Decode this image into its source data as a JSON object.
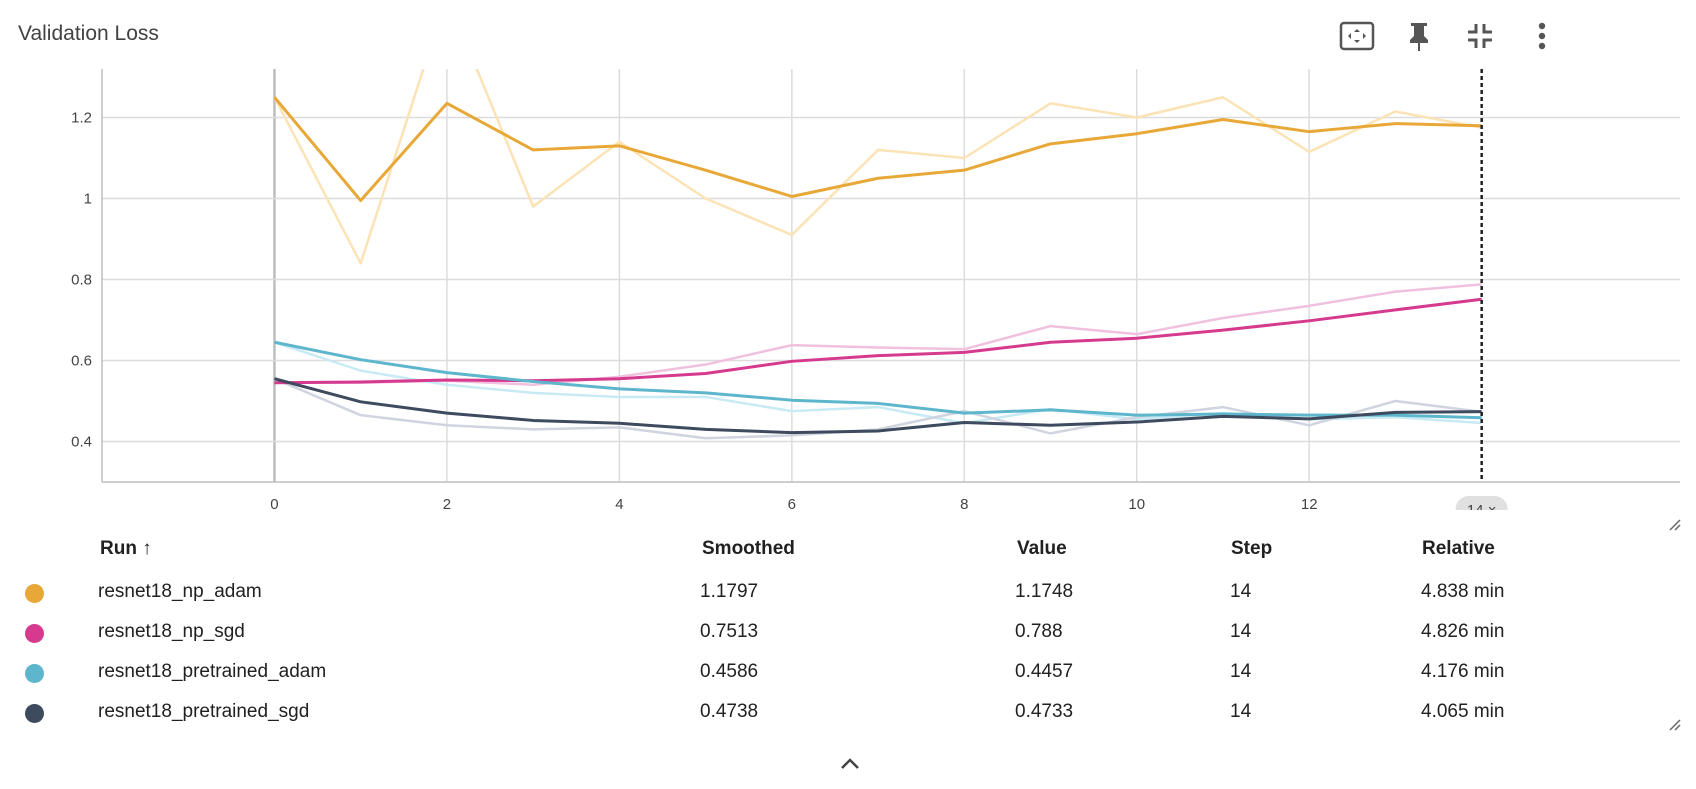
{
  "card": {
    "title": "Validation Loss"
  },
  "toolbar": {
    "icons": [
      "fit-to-data-icon",
      "pin-icon",
      "collapse-icon",
      "more-vert-icon"
    ]
  },
  "chart_data": {
    "type": "line",
    "xlim": [
      -2,
      16.3
    ],
    "ylim": [
      0.3,
      1.3
    ],
    "x_ticks": [
      0,
      2,
      4,
      6,
      8,
      10,
      12
    ],
    "x_tick_labels": [
      "0",
      "2",
      "4",
      "6",
      "8",
      "10",
      "12"
    ],
    "y_ticks": [
      0.4,
      0.6,
      0.8,
      1.0,
      1.2
    ],
    "y_tick_labels": [
      "0.4",
      "0.6",
      "0.8",
      "1",
      "1.2"
    ],
    "grid": true,
    "cursor_step": 14,
    "cursor_label": "14 ×",
    "series": [
      {
        "name": "resnet18_np_adam",
        "color": "#e8a838",
        "light": "#fbe3b5",
        "x": [
          0,
          1,
          2,
          3,
          4,
          5,
          6,
          7,
          8,
          9,
          10,
          11,
          12,
          13,
          14
        ],
        "raw": [
          1.25,
          0.84,
          1.5,
          0.98,
          1.14,
          1.0,
          0.91,
          1.12,
          1.1,
          1.235,
          1.2,
          1.25,
          1.115,
          1.215,
          1.1748
        ],
        "smoothed": [
          1.25,
          0.995,
          1.235,
          1.12,
          1.13,
          1.07,
          1.005,
          1.05,
          1.07,
          1.135,
          1.16,
          1.195,
          1.165,
          1.185,
          1.1797
        ]
      },
      {
        "name": "resnet18_np_sgd",
        "color": "#d63a8f",
        "light": "#efc1de",
        "x": [
          0,
          1,
          2,
          3,
          4,
          5,
          6,
          7,
          8,
          9,
          10,
          11,
          12,
          13,
          14
        ],
        "raw": [
          0.545,
          0.545,
          0.55,
          0.54,
          0.56,
          0.59,
          0.638,
          0.632,
          0.628,
          0.685,
          0.665,
          0.705,
          0.735,
          0.77,
          0.788
        ],
        "smoothed": [
          0.545,
          0.547,
          0.552,
          0.55,
          0.555,
          0.568,
          0.598,
          0.612,
          0.62,
          0.645,
          0.655,
          0.675,
          0.698,
          0.725,
          0.7513
        ]
      },
      {
        "name": "resnet18_pretrained_adam",
        "color": "#5db6cc",
        "light": "#c7eaf4",
        "x": [
          0,
          1,
          2,
          3,
          4,
          5,
          6,
          7,
          8,
          9,
          10,
          11,
          12,
          13,
          14
        ],
        "raw": [
          0.645,
          0.575,
          0.54,
          0.52,
          0.51,
          0.51,
          0.475,
          0.485,
          0.445,
          0.48,
          0.455,
          0.47,
          0.455,
          0.46,
          0.4457
        ],
        "smoothed": [
          0.645,
          0.602,
          0.57,
          0.548,
          0.53,
          0.52,
          0.502,
          0.494,
          0.47,
          0.478,
          0.465,
          0.468,
          0.465,
          0.465,
          0.4586
        ]
      },
      {
        "name": "resnet18_pretrained_sgd",
        "color": "#3e4a5e",
        "light": "#d0d4df",
        "x": [
          0,
          1,
          2,
          3,
          4,
          5,
          6,
          7,
          8,
          9,
          10,
          11,
          12,
          13,
          14
        ],
        "raw": [
          0.555,
          0.465,
          0.44,
          0.43,
          0.435,
          0.408,
          0.415,
          0.43,
          0.475,
          0.42,
          0.46,
          0.485,
          0.44,
          0.5,
          0.4733
        ],
        "smoothed": [
          0.555,
          0.498,
          0.47,
          0.452,
          0.445,
          0.43,
          0.422,
          0.426,
          0.447,
          0.44,
          0.448,
          0.462,
          0.456,
          0.472,
          0.4738
        ]
      }
    ]
  },
  "table": {
    "headers": {
      "run": "Run ↑",
      "smoothed": "Smoothed",
      "value": "Value",
      "step": "Step",
      "relative": "Relative"
    },
    "rows": [
      {
        "run": "resnet18_np_adam",
        "smoothed": "1.1797",
        "value": "1.1748",
        "step": "14",
        "relative": "4.838 min",
        "color": "#e8a838"
      },
      {
        "run": "resnet18_np_sgd",
        "smoothed": "0.7513",
        "value": "0.788",
        "step": "14",
        "relative": "4.826 min",
        "color": "#d63a8f"
      },
      {
        "run": "resnet18_pretrained_adam",
        "smoothed": "0.4586",
        "value": "0.4457",
        "step": "14",
        "relative": "4.176 min",
        "color": "#5db6cc"
      },
      {
        "run": "resnet18_pretrained_sgd",
        "smoothed": "0.4738",
        "value": "0.4733",
        "step": "14",
        "relative": "4.065 min",
        "color": "#3e4a5e"
      }
    ]
  }
}
